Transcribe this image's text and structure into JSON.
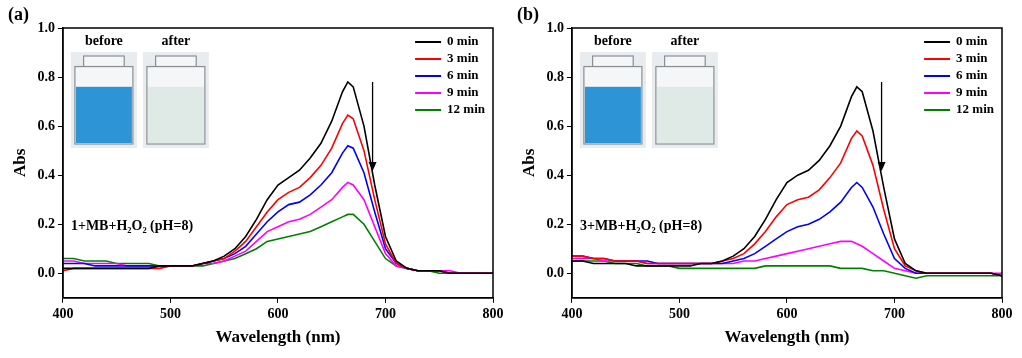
{
  "chart_data": [
    {
      "type": "line",
      "panel_label": "(a)",
      "annotation": "1+MB+H₂O₂ (pH=8)",
      "inset_labels": [
        "before",
        "after"
      ],
      "x_label": "Wavelength (nm)",
      "y_label": "Abs",
      "xlim": [
        400,
        800
      ],
      "xticks": [
        400,
        500,
        600,
        700,
        800
      ],
      "ylim": [
        -0.1,
        1.0
      ],
      "yticks": [
        {
          "value": 0,
          "label": "0.0"
        },
        0.2,
        0.4,
        0.6,
        0.8,
        {
          "value": 1.0,
          "label": "1.0"
        }
      ],
      "grid": false,
      "legend": "upper right",
      "x": [
        400,
        410,
        420,
        430,
        440,
        450,
        460,
        470,
        480,
        490,
        500,
        510,
        520,
        530,
        540,
        550,
        560,
        570,
        580,
        590,
        600,
        610,
        620,
        630,
        640,
        650,
        660,
        665,
        670,
        680,
        690,
        700,
        710,
        720,
        730,
        740,
        750,
        760,
        770,
        780,
        790,
        800
      ],
      "series": [
        {
          "name": "0 min",
          "color": "#000000",
          "values": [
            0.02,
            0.02,
            0.02,
            0.02,
            0.02,
            0.02,
            0.02,
            0.02,
            0.02,
            0.03,
            0.03,
            0.03,
            0.03,
            0.04,
            0.05,
            0.07,
            0.1,
            0.15,
            0.22,
            0.3,
            0.36,
            0.39,
            0.42,
            0.47,
            0.53,
            0.62,
            0.74,
            0.78,
            0.76,
            0.6,
            0.36,
            0.15,
            0.05,
            0.02,
            0.01,
            0.01,
            0.01,
            0,
            0,
            0,
            0,
            0
          ]
        },
        {
          "name": "3 min",
          "color": "#ff0000",
          "values": [
            0.01,
            0.02,
            0.02,
            0.02,
            0.02,
            0.02,
            0.02,
            0.02,
            0.02,
            0.02,
            0.03,
            0.03,
            0.03,
            0.04,
            0.05,
            0.06,
            0.09,
            0.13,
            0.19,
            0.25,
            0.3,
            0.33,
            0.35,
            0.39,
            0.44,
            0.51,
            0.61,
            0.645,
            0.63,
            0.5,
            0.3,
            0.12,
            0.04,
            0.02,
            0.01,
            0.01,
            0.01,
            0,
            0,
            0,
            0,
            0
          ]
        },
        {
          "name": "6 min",
          "color": "#0000ff",
          "values": [
            0.04,
            0.04,
            0.04,
            0.03,
            0.03,
            0.03,
            0.03,
            0.03,
            0.03,
            0.03,
            0.03,
            0.03,
            0.03,
            0.04,
            0.05,
            0.06,
            0.08,
            0.11,
            0.16,
            0.21,
            0.25,
            0.28,
            0.29,
            0.32,
            0.36,
            0.41,
            0.49,
            0.52,
            0.51,
            0.41,
            0.25,
            0.1,
            0.04,
            0.02,
            0.01,
            0.01,
            0.01,
            0,
            0,
            0,
            0,
            0
          ]
        },
        {
          "name": "9 min",
          "color": "#ff00ff",
          "values": [
            0.05,
            0.05,
            0.04,
            0.04,
            0.04,
            0.04,
            0.03,
            0.03,
            0.03,
            0.03,
            0.03,
            0.03,
            0.03,
            0.04,
            0.04,
            0.05,
            0.07,
            0.09,
            0.13,
            0.17,
            0.19,
            0.21,
            0.22,
            0.24,
            0.27,
            0.3,
            0.35,
            0.37,
            0.36,
            0.3,
            0.19,
            0.08,
            0.03,
            0.02,
            0.01,
            0.01,
            0.01,
            0.01,
            0,
            0,
            0,
            0
          ]
        },
        {
          "name": "12 min",
          "color": "#008000",
          "values": [
            0.06,
            0.06,
            0.05,
            0.05,
            0.05,
            0.04,
            0.04,
            0.04,
            0.04,
            0.03,
            0.03,
            0.03,
            0.03,
            0.03,
            0.04,
            0.05,
            0.06,
            0.08,
            0.1,
            0.13,
            0.14,
            0.15,
            0.16,
            0.17,
            0.19,
            0.21,
            0.23,
            0.24,
            0.24,
            0.2,
            0.13,
            0.06,
            0.03,
            0.02,
            0.01,
            0.01,
            0,
            0,
            0,
            0,
            0,
            0
          ]
        }
      ]
    },
    {
      "type": "line",
      "panel_label": "(b)",
      "annotation": "3+MB+H₂O₂ (pH=8)",
      "inset_labels": [
        "before",
        "after"
      ],
      "x_label": "Wavelength (nm)",
      "y_label": "Abs",
      "xlim": [
        400,
        800
      ],
      "xticks": [
        400,
        500,
        600,
        700,
        800
      ],
      "ylim": [
        -0.1,
        1.0
      ],
      "yticks": [
        {
          "value": 0,
          "label": "0.0"
        },
        0.2,
        0.4,
        0.6,
        0.8,
        {
          "value": 1.0,
          "label": "1.0"
        }
      ],
      "grid": false,
      "legend": "upper right",
      "x": [
        400,
        410,
        420,
        430,
        440,
        450,
        460,
        470,
        480,
        490,
        500,
        510,
        520,
        530,
        540,
        550,
        560,
        570,
        580,
        590,
        600,
        610,
        620,
        630,
        640,
        650,
        660,
        665,
        670,
        680,
        690,
        700,
        710,
        720,
        730,
        740,
        750,
        760,
        770,
        780,
        790,
        800
      ],
      "series": [
        {
          "name": "0 min",
          "color": "#000000",
          "values": [
            0.05,
            0.05,
            0.04,
            0.04,
            0.04,
            0.04,
            0.03,
            0.03,
            0.03,
            0.03,
            0.03,
            0.03,
            0.04,
            0.04,
            0.05,
            0.07,
            0.1,
            0.15,
            0.22,
            0.3,
            0.37,
            0.4,
            0.42,
            0.46,
            0.52,
            0.6,
            0.72,
            0.76,
            0.74,
            0.58,
            0.35,
            0.14,
            0.04,
            0.01,
            0,
            0,
            0,
            0,
            0,
            0,
            0,
            -0.01
          ]
        },
        {
          "name": "3 min",
          "color": "#ff0000",
          "values": [
            0.07,
            0.07,
            0.06,
            0.06,
            0.05,
            0.05,
            0.05,
            0.04,
            0.04,
            0.04,
            0.04,
            0.04,
            0.04,
            0.04,
            0.05,
            0.06,
            0.08,
            0.12,
            0.17,
            0.23,
            0.28,
            0.3,
            0.31,
            0.34,
            0.39,
            0.45,
            0.55,
            0.58,
            0.56,
            0.44,
            0.26,
            0.1,
            0.03,
            0.01,
            0,
            0,
            0,
            0,
            0,
            0,
            0,
            -0.01
          ]
        },
        {
          "name": "6 min",
          "color": "#0000ff",
          "values": [
            0.07,
            0.07,
            0.06,
            0.06,
            0.05,
            0.05,
            0.05,
            0.05,
            0.04,
            0.04,
            0.04,
            0.04,
            0.04,
            0.04,
            0.04,
            0.05,
            0.06,
            0.08,
            0.11,
            0.14,
            0.17,
            0.19,
            0.2,
            0.22,
            0.25,
            0.29,
            0.35,
            0.37,
            0.35,
            0.27,
            0.16,
            0.06,
            0.02,
            0,
            0,
            0,
            0,
            0,
            0,
            0,
            0,
            -0.01
          ]
        },
        {
          "name": "9 min",
          "color": "#ff00ff",
          "values": [
            0.06,
            0.06,
            0.06,
            0.05,
            0.05,
            0.05,
            0.05,
            0.04,
            0.04,
            0.04,
            0.04,
            0.04,
            0.04,
            0.04,
            0.04,
            0.04,
            0.05,
            0.05,
            0.06,
            0.07,
            0.08,
            0.09,
            0.1,
            0.11,
            0.12,
            0.13,
            0.13,
            0.12,
            0.11,
            0.08,
            0.05,
            0.02,
            0.01,
            0,
            0,
            0,
            0,
            0,
            0,
            0,
            0,
            0
          ]
        },
        {
          "name": "12 min",
          "color": "#008000",
          "values": [
            0.05,
            0.05,
            0.05,
            0.05,
            0.04,
            0.04,
            0.04,
            0.03,
            0.03,
            0.03,
            0.02,
            0.02,
            0.02,
            0.02,
            0.02,
            0.02,
            0.02,
            0.02,
            0.03,
            0.03,
            0.03,
            0.03,
            0.03,
            0.03,
            0.03,
            0.02,
            0.02,
            0.02,
            0.02,
            0.01,
            0.01,
            0,
            -0.01,
            -0.02,
            -0.01,
            -0.01,
            -0.01,
            -0.01,
            -0.01,
            -0.01,
            -0.01,
            -0.01
          ]
        }
      ]
    }
  ]
}
